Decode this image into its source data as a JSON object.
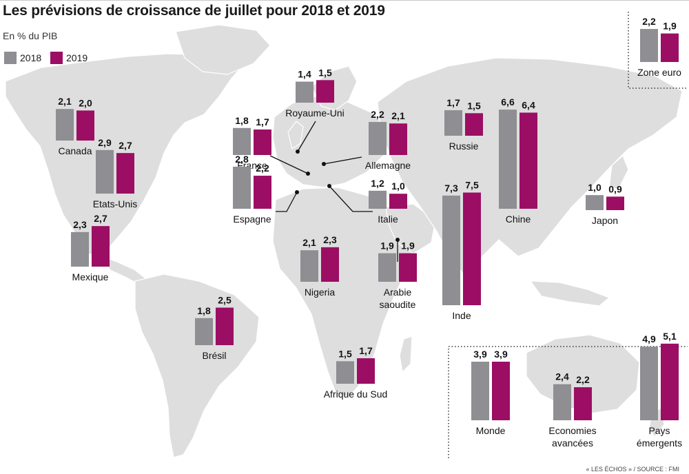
{
  "header": {
    "title": "Les prévisions de croissance de juillet pour 2018 et 2019",
    "subtitle": "En % du PIB"
  },
  "legend": [
    {
      "label": "2018",
      "color": "#8e8e93"
    },
    {
      "label": "2019",
      "color": "#9b0e64"
    }
  ],
  "footer": {
    "source": "« LES ÉCHOS » / SOURCE : FMI"
  },
  "colors": {
    "map_land": "#dedede",
    "text": "#111111"
  },
  "chart_data": {
    "type": "bar",
    "title": "Les prévisions de croissance de juillet pour 2018 et 2019",
    "ylabel": "En % du PIB",
    "series_names": [
      "2018",
      "2019"
    ],
    "values_are_labeled": true,
    "groups": [
      {
        "label": [
          "Canada"
        ],
        "values": [
          2.1,
          2.0
        ],
        "value_labels": [
          "2,1",
          "2,0"
        ]
      },
      {
        "label": [
          "Etats-Unis"
        ],
        "values": [
          2.9,
          2.7
        ],
        "value_labels": [
          "2,9",
          "2,7"
        ]
      },
      {
        "label": [
          "Mexique"
        ],
        "values": [
          2.3,
          2.7
        ],
        "value_labels": [
          "2,3",
          "2,7"
        ]
      },
      {
        "label": [
          "Brésil"
        ],
        "values": [
          1.8,
          2.5
        ],
        "value_labels": [
          "1,8",
          "2,5"
        ]
      },
      {
        "label": [
          "Royaume-Uni"
        ],
        "values": [
          1.4,
          1.5
        ],
        "value_labels": [
          "1,4",
          "1,5"
        ]
      },
      {
        "label": [
          "France"
        ],
        "values": [
          1.8,
          1.7
        ],
        "value_labels": [
          "1,8",
          "1,7"
        ]
      },
      {
        "label": [
          "Espagne"
        ],
        "values": [
          2.8,
          2.2
        ],
        "value_labels": [
          "2,8",
          "2,2"
        ]
      },
      {
        "label": [
          "Allemagne"
        ],
        "values": [
          2.2,
          2.1
        ],
        "value_labels": [
          "2,2",
          "2,1"
        ]
      },
      {
        "label": [
          "Italie"
        ],
        "values": [
          1.2,
          1.0
        ],
        "value_labels": [
          "1,2",
          "1,0"
        ]
      },
      {
        "label": [
          "Nigeria"
        ],
        "values": [
          2.1,
          2.3
        ],
        "value_labels": [
          "2,1",
          "2,3"
        ]
      },
      {
        "label": [
          "Arabie",
          "saoudite"
        ],
        "values": [
          1.9,
          1.9
        ],
        "value_labels": [
          "1,9",
          "1,9"
        ]
      },
      {
        "label": [
          "Afrique du Sud"
        ],
        "values": [
          1.5,
          1.7
        ],
        "value_labels": [
          "1,5",
          "1,7"
        ]
      },
      {
        "label": [
          "Russie"
        ],
        "values": [
          1.7,
          1.5
        ],
        "value_labels": [
          "1,7",
          "1,5"
        ]
      },
      {
        "label": [
          "Inde"
        ],
        "values": [
          7.3,
          7.5
        ],
        "value_labels": [
          "7,3",
          "7,5"
        ]
      },
      {
        "label": [
          "Chine"
        ],
        "values": [
          6.6,
          6.4
        ],
        "value_labels": [
          "6,6",
          "6,4"
        ]
      },
      {
        "label": [
          "Japon"
        ],
        "values": [
          1.0,
          0.9
        ],
        "value_labels": [
          "1,0",
          "0,9"
        ]
      },
      {
        "label": [
          "Zone euro"
        ],
        "values": [
          2.2,
          1.9
        ],
        "value_labels": [
          "2,2",
          "1,9"
        ]
      },
      {
        "label": [
          "Monde"
        ],
        "values": [
          3.9,
          3.9
        ],
        "value_labels": [
          "3,9",
          "3,9"
        ]
      },
      {
        "label": [
          "Economies",
          "avancées"
        ],
        "values": [
          2.4,
          2.2
        ],
        "value_labels": [
          "2,4",
          "2,2"
        ]
      },
      {
        "label": [
          "Pays",
          "émergents"
        ],
        "values": [
          4.9,
          5.1
        ],
        "value_labels": [
          "4,9",
          "5,1"
        ]
      }
    ]
  }
}
